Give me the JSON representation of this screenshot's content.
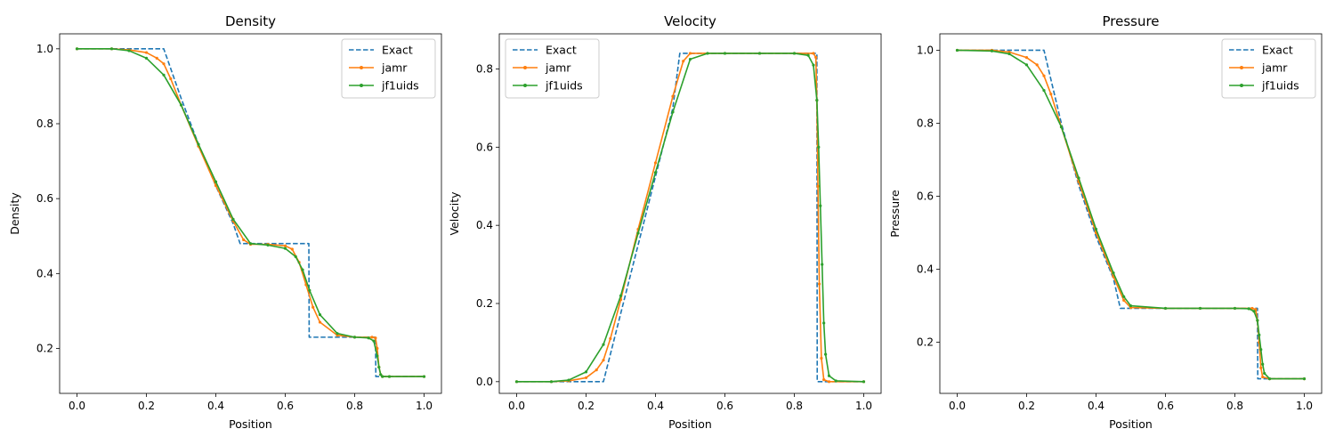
{
  "colors": {
    "exact": "#1f77b4",
    "jamr": "#ff7f0e",
    "jf1uids": "#2ca02c"
  },
  "chart_data": [
    {
      "type": "line",
      "title": "Density",
      "xlabel": "Position",
      "ylabel": "Density",
      "xlim": [
        -0.05,
        1.05
      ],
      "ylim": [
        0.08,
        1.04
      ],
      "xticks": [
        "0.0",
        "0.2",
        "0.4",
        "0.6",
        "0.8",
        "1.0"
      ],
      "yticks": [
        "0.2",
        "0.4",
        "0.6",
        "0.8",
        "1.0"
      ],
      "legend": "top-right",
      "series": [
        {
          "name": "Exact",
          "style": "dashed",
          "x": [
            0,
            0.1,
            0.2,
            0.25,
            0.3,
            0.35,
            0.4,
            0.45,
            0.47,
            0.5,
            0.6,
            0.668,
            0.669,
            0.7,
            0.8,
            0.86,
            0.861,
            0.9,
            1.0
          ],
          "y": [
            1.0,
            1.0,
            1.0,
            1.0,
            0.868,
            0.745,
            0.634,
            0.533,
            0.48,
            0.48,
            0.48,
            0.48,
            0.23,
            0.23,
            0.23,
            0.23,
            0.125,
            0.125,
            0.125
          ]
        },
        {
          "name": "jamr",
          "style": "marker",
          "x": [
            0,
            0.1,
            0.15,
            0.2,
            0.23,
            0.25,
            0.27,
            0.3,
            0.35,
            0.4,
            0.45,
            0.48,
            0.5,
            0.55,
            0.6,
            0.62,
            0.64,
            0.66,
            0.68,
            0.7,
            0.75,
            0.8,
            0.85,
            0.86,
            0.865,
            0.87,
            0.875,
            0.88,
            0.9,
            1.0
          ],
          "y": [
            1.0,
            1.0,
            0.997,
            0.99,
            0.975,
            0.96,
            0.92,
            0.85,
            0.74,
            0.635,
            0.54,
            0.49,
            0.478,
            0.478,
            0.474,
            0.465,
            0.43,
            0.37,
            0.31,
            0.27,
            0.235,
            0.23,
            0.23,
            0.228,
            0.2,
            0.15,
            0.13,
            0.125,
            0.125,
            0.125
          ]
        },
        {
          "name": "jf1uids",
          "style": "marker",
          "x": [
            0,
            0.1,
            0.15,
            0.2,
            0.25,
            0.3,
            0.35,
            0.4,
            0.45,
            0.5,
            0.55,
            0.6,
            0.63,
            0.65,
            0.67,
            0.7,
            0.75,
            0.8,
            0.84,
            0.855,
            0.865,
            0.87,
            0.875,
            0.88,
            0.9,
            1.0
          ],
          "y": [
            1.0,
            1.0,
            0.995,
            0.975,
            0.93,
            0.85,
            0.745,
            0.645,
            0.545,
            0.48,
            0.476,
            0.467,
            0.445,
            0.41,
            0.355,
            0.29,
            0.24,
            0.23,
            0.228,
            0.22,
            0.18,
            0.15,
            0.13,
            0.125,
            0.125,
            0.125
          ]
        }
      ]
    },
    {
      "type": "line",
      "title": "Velocity",
      "xlabel": "Position",
      "ylabel": "Velocity",
      "xlim": [
        -0.05,
        1.05
      ],
      "ylim": [
        -0.03,
        0.89
      ],
      "xticks": [
        "0.0",
        "0.2",
        "0.4",
        "0.6",
        "0.8",
        "1.0"
      ],
      "yticks": [
        "0.0",
        "0.2",
        "0.4",
        "0.6",
        "0.8"
      ],
      "legend": "top-left",
      "series": [
        {
          "name": "Exact",
          "style": "dashed",
          "x": [
            0,
            0.1,
            0.2,
            0.25,
            0.3,
            0.35,
            0.4,
            0.45,
            0.47,
            0.5,
            0.6,
            0.7,
            0.8,
            0.865,
            0.866,
            0.9,
            1.0
          ],
          "y": [
            0,
            0,
            0,
            0,
            0.175,
            0.35,
            0.525,
            0.7,
            0.84,
            0.84,
            0.84,
            0.84,
            0.84,
            0.84,
            0,
            0,
            0
          ]
        },
        {
          "name": "jamr",
          "style": "marker",
          "x": [
            0,
            0.1,
            0.15,
            0.2,
            0.23,
            0.25,
            0.27,
            0.3,
            0.35,
            0.4,
            0.45,
            0.48,
            0.5,
            0.6,
            0.7,
            0.8,
            0.855,
            0.862,
            0.865,
            0.868,
            0.872,
            0.878,
            0.885,
            0.9,
            1.0
          ],
          "y": [
            0,
            0,
            0.002,
            0.01,
            0.03,
            0.055,
            0.11,
            0.21,
            0.39,
            0.56,
            0.73,
            0.82,
            0.84,
            0.84,
            0.84,
            0.84,
            0.84,
            0.83,
            0.72,
            0.5,
            0.25,
            0.06,
            0.005,
            0,
            0
          ]
        },
        {
          "name": "jf1uids",
          "style": "marker",
          "x": [
            0,
            0.1,
            0.15,
            0.2,
            0.25,
            0.3,
            0.35,
            0.4,
            0.45,
            0.5,
            0.55,
            0.6,
            0.7,
            0.8,
            0.84,
            0.855,
            0.865,
            0.87,
            0.875,
            0.88,
            0.885,
            0.89,
            0.9,
            0.92,
            1.0
          ],
          "y": [
            0,
            0,
            0.004,
            0.025,
            0.095,
            0.22,
            0.38,
            0.535,
            0.69,
            0.825,
            0.84,
            0.84,
            0.84,
            0.84,
            0.835,
            0.81,
            0.72,
            0.6,
            0.45,
            0.3,
            0.15,
            0.07,
            0.015,
            0.002,
            0
          ]
        }
      ]
    },
    {
      "type": "line",
      "title": "Pressure",
      "xlabel": "Position",
      "ylabel": "Pressure",
      "xlim": [
        -0.05,
        1.05
      ],
      "ylim": [
        0.06,
        1.045
      ],
      "xticks": [
        "0.0",
        "0.2",
        "0.4",
        "0.6",
        "0.8",
        "1.0"
      ],
      "yticks": [
        "0.2",
        "0.4",
        "0.6",
        "0.8",
        "1.0"
      ],
      "legend": "top-right",
      "series": [
        {
          "name": "Exact",
          "style": "dashed",
          "x": [
            0,
            0.1,
            0.2,
            0.25,
            0.3,
            0.35,
            0.4,
            0.45,
            0.47,
            0.5,
            0.6,
            0.7,
            0.8,
            0.865,
            0.866,
            0.9,
            1.0
          ],
          "y": [
            1.0,
            1.0,
            1.0,
            1.0,
            0.8,
            0.63,
            0.49,
            0.375,
            0.293,
            0.293,
            0.293,
            0.293,
            0.293,
            0.293,
            0.1,
            0.1,
            0.1
          ]
        },
        {
          "name": "jamr",
          "style": "marker",
          "x": [
            0,
            0.1,
            0.15,
            0.2,
            0.23,
            0.25,
            0.27,
            0.3,
            0.35,
            0.4,
            0.45,
            0.48,
            0.5,
            0.6,
            0.7,
            0.8,
            0.85,
            0.86,
            0.865,
            0.87,
            0.875,
            0.88,
            0.9,
            1.0
          ],
          "y": [
            1.0,
            1.0,
            0.995,
            0.98,
            0.96,
            0.93,
            0.88,
            0.79,
            0.64,
            0.5,
            0.38,
            0.315,
            0.295,
            0.293,
            0.293,
            0.293,
            0.293,
            0.29,
            0.26,
            0.2,
            0.13,
            0.105,
            0.1,
            0.1
          ]
        },
        {
          "name": "jf1uids",
          "style": "marker",
          "x": [
            0,
            0.1,
            0.15,
            0.2,
            0.25,
            0.3,
            0.35,
            0.4,
            0.45,
            0.48,
            0.5,
            0.6,
            0.7,
            0.8,
            0.84,
            0.855,
            0.865,
            0.87,
            0.875,
            0.88,
            0.885,
            0.9,
            1.0
          ],
          "y": [
            1.0,
            0.998,
            0.99,
            0.96,
            0.89,
            0.79,
            0.65,
            0.51,
            0.39,
            0.325,
            0.3,
            0.293,
            0.293,
            0.293,
            0.292,
            0.285,
            0.26,
            0.22,
            0.18,
            0.14,
            0.115,
            0.1,
            0.1
          ]
        }
      ]
    }
  ]
}
